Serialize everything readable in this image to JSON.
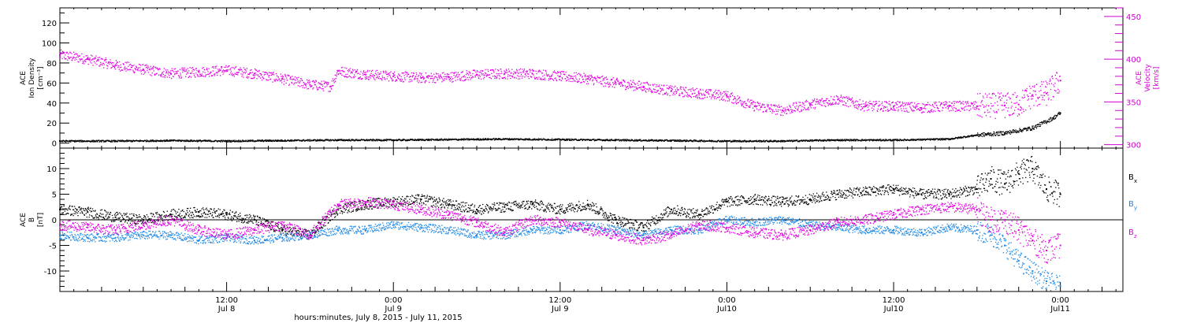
{
  "chart_data": [
    {
      "type": "scatter",
      "panel": "top",
      "ylabel_lines": [
        "ACE",
        "Ion Density",
        "[cm⁻³]"
      ],
      "y2label_lines": [
        "ACE",
        "Velocity",
        "[km/s]"
      ],
      "ylim": [
        -5,
        135
      ],
      "y2lim": [
        296,
        460
      ],
      "yticks": [
        0,
        20,
        40,
        60,
        80,
        100,
        120
      ],
      "y2ticks": [
        300,
        350,
        400,
        450
      ],
      "series": [
        {
          "color": "#000000",
          "axis": "left",
          "x": [
            0,
            4,
            8,
            12,
            16,
            20,
            24,
            28,
            32,
            36,
            40,
            44,
            48,
            52,
            56,
            60,
            64,
            66,
            68,
            70,
            71.5,
            72
          ],
          "y": [
            2,
            2,
            2.5,
            2,
            2.5,
            3,
            3,
            3.5,
            4,
            3.5,
            3,
            2.5,
            2,
            2,
            3,
            3,
            4,
            8,
            10,
            15,
            25,
            30
          ]
        },
        {
          "color": "#e000e0",
          "axis": "right",
          "x": [
            0,
            2,
            4,
            6,
            8,
            10,
            12,
            14,
            16,
            18,
            19.5,
            20,
            22,
            24,
            26,
            28,
            30,
            32,
            34,
            36,
            38,
            40,
            42,
            44,
            46,
            48,
            50,
            52,
            54,
            56,
            58,
            60,
            62,
            64,
            66,
            68,
            69,
            70,
            71,
            72
          ],
          "y": [
            405,
            400,
            393,
            388,
            383,
            385,
            387,
            383,
            377,
            370,
            368,
            386,
            382,
            380,
            378,
            379,
            382,
            383,
            383,
            380,
            377,
            372,
            368,
            363,
            360,
            357,
            345,
            340,
            347,
            353,
            345,
            345,
            343,
            345,
            345,
            346,
            347,
            358,
            360,
            375
          ]
        }
      ]
    },
    {
      "type": "scatter",
      "panel": "bottom",
      "ylabel_lines": [
        "ACE",
        "B",
        "[nT]"
      ],
      "ylim": [
        -14,
        14
      ],
      "yticks": [
        -10,
        -5,
        0,
        5,
        10
      ],
      "xticks": [
        {
          "x": 12,
          "time": "12:00",
          "date": "Jul 8"
        },
        {
          "x": 24,
          "time": "0:00",
          "date": "Jul 9"
        },
        {
          "x": 36,
          "time": "12:00",
          "date": "Jul 9"
        },
        {
          "x": 48,
          "time": "0:00",
          "date": "Jul10"
        },
        {
          "x": 60,
          "time": "12:00",
          "date": "Jul10"
        },
        {
          "x": 72,
          "time": "0:00",
          "date": "Jul11"
        }
      ],
      "xlim": [
        0,
        72
      ],
      "xlabel": "hours:minutes, July  8, 2015 - July 11, 2015",
      "legend": [
        {
          "name": "B",
          "sub": "x",
          "color": "#000000"
        },
        {
          "name": "B",
          "sub": "y",
          "color": "#1e88e5"
        },
        {
          "name": "B",
          "sub": "z",
          "color": "#e000e0"
        }
      ],
      "series": [
        {
          "name": "Bx",
          "color": "#000000",
          "x": [
            0,
            2,
            4,
            6,
            8,
            10,
            12,
            14,
            16,
            18,
            20,
            22,
            24,
            26,
            28,
            30,
            32,
            34,
            36,
            38,
            40,
            42,
            44,
            46,
            48,
            50,
            52,
            54,
            56,
            58,
            60,
            62,
            64,
            66,
            67,
            68,
            69,
            70,
            71,
            72
          ],
          "y": [
            2,
            1.5,
            0.5,
            0,
            1,
            1.5,
            1,
            0,
            -2,
            -3,
            2,
            3,
            3.5,
            4,
            3,
            2,
            2.5,
            3,
            2,
            3,
            0,
            -1.5,
            2,
            1,
            3.5,
            4,
            3.5,
            4,
            5,
            5.5,
            6,
            5,
            5,
            6,
            8,
            7,
            9,
            10,
            6,
            5
          ]
        },
        {
          "name": "By",
          "color": "#1e88e5",
          "x": [
            0,
            2,
            4,
            6,
            8,
            10,
            12,
            14,
            16,
            18,
            20,
            22,
            24,
            26,
            28,
            30,
            32,
            34,
            36,
            38,
            40,
            42,
            44,
            46,
            48,
            50,
            52,
            54,
            56,
            58,
            60,
            62,
            64,
            66,
            67,
            68,
            69,
            70,
            71,
            72
          ],
          "y": [
            -3,
            -3.5,
            -3.5,
            -3,
            -3,
            -4,
            -3.5,
            -4,
            -3.5,
            -3,
            -2,
            -2,
            -1,
            -1.5,
            -2,
            -3,
            -3,
            -2,
            -2,
            -1,
            -2,
            -3,
            -2,
            -2,
            0,
            -0.5,
            0,
            -1,
            -1.5,
            -2,
            -2,
            -2.5,
            -1.5,
            -2,
            -3,
            -5,
            -8,
            -10,
            -12,
            -13
          ]
        },
        {
          "name": "Bz",
          "color": "#e000e0",
          "x": [
            0,
            2,
            4,
            6,
            8,
            10,
            12,
            14,
            16,
            18,
            20,
            22,
            24,
            26,
            28,
            30,
            32,
            34,
            36,
            38,
            40,
            42,
            44,
            46,
            48,
            50,
            52,
            54,
            56,
            58,
            60,
            62,
            64,
            66,
            67,
            68,
            69,
            70,
            71,
            72
          ],
          "y": [
            -1,
            -1.5,
            -2,
            -1,
            0,
            -2,
            -3,
            -2,
            -1,
            -3,
            3,
            3.5,
            3,
            2,
            1,
            -0.5,
            -2.5,
            0,
            -0.5,
            -2,
            -3,
            -4,
            -3,
            -1,
            -1.5,
            -2.5,
            -3,
            -2,
            -0.5,
            0,
            1,
            2,
            2.5,
            2,
            0,
            0,
            -2,
            -4,
            -6,
            -5
          ]
        }
      ]
    }
  ]
}
